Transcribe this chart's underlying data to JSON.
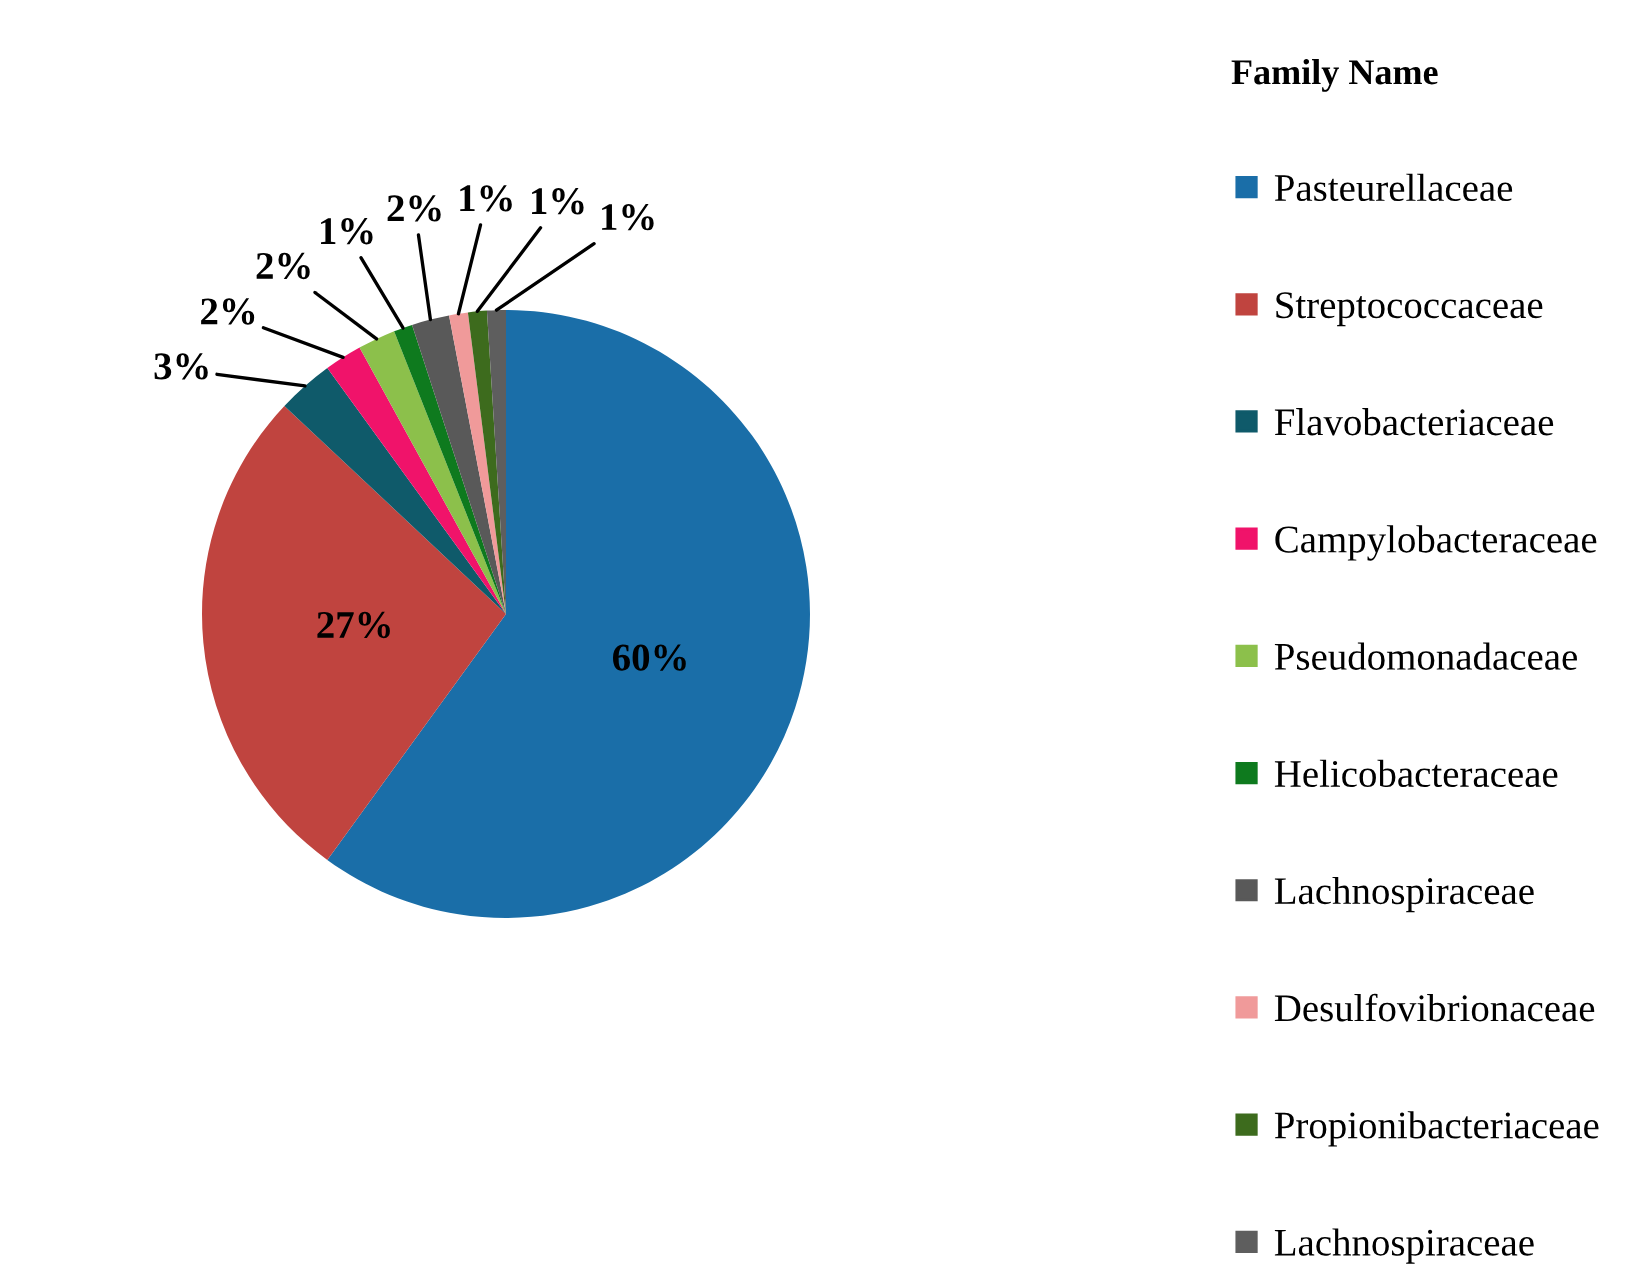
{
  "chart_data": {
    "type": "pie",
    "legend_title": "Family Name",
    "legend": "right",
    "categories": [
      "Pasteurellaceae",
      "Streptococcaceae",
      "Flavobacteriaceae",
      "Campylobacteraceae",
      "Pseudomonadaceae",
      "Helicobacteraceae",
      "Lachnospiraceae",
      "Desulfovibrionaceae",
      "Propionibacteriaceae",
      "Lachnospiraceae"
    ],
    "values": [
      60,
      27,
      3,
      2,
      2,
      1,
      2,
      1,
      1,
      1
    ],
    "value_labels": [
      "60%",
      "27%",
      "3%",
      "2%",
      "2%",
      "1%",
      "2%",
      "1%",
      "1%",
      "1%"
    ],
    "colors": [
      "#1a6ea8",
      "#c0443f",
      "#0f5a6a",
      "#f0136a",
      "#8cc04b",
      "#0e7a1e",
      "#595959",
      "#f09a9a",
      "#3d6b1d",
      "#5e5e5e"
    ]
  }
}
